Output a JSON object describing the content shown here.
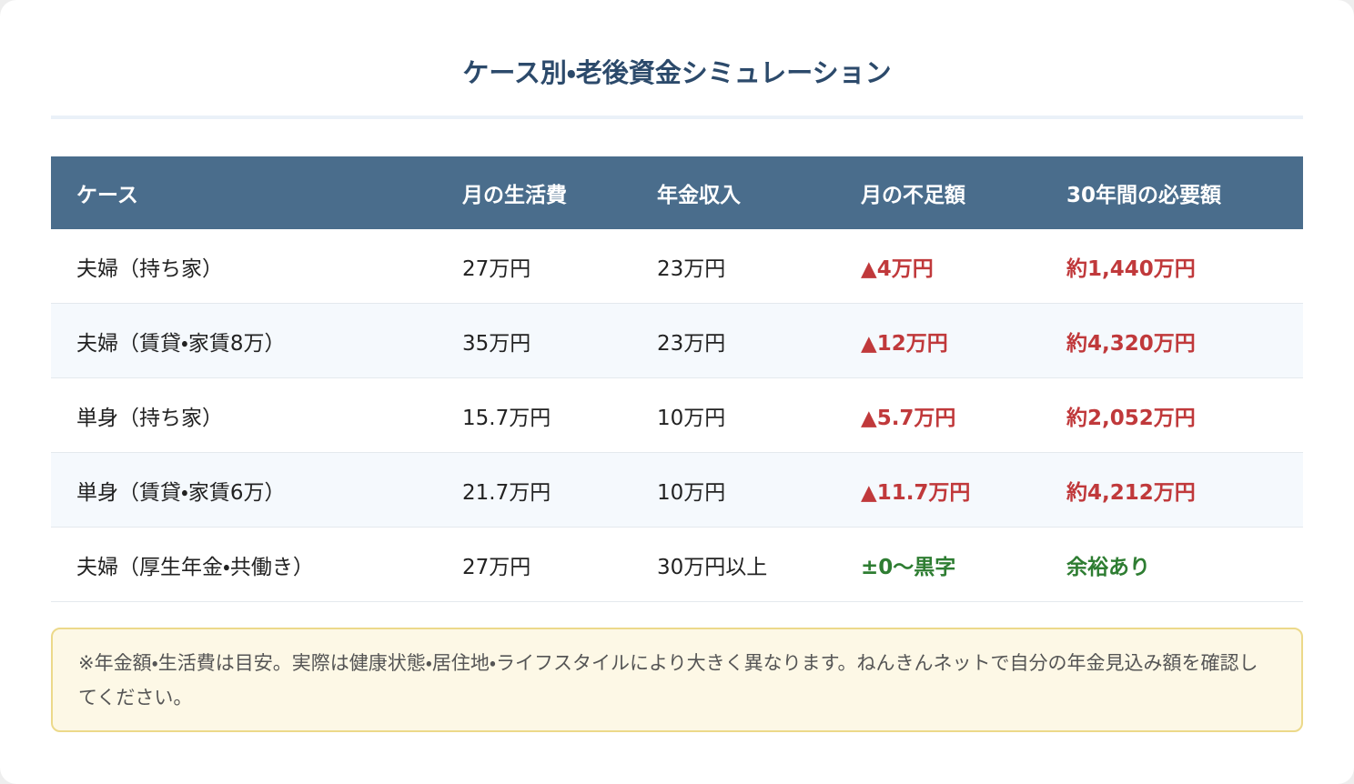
{
  "header": {
    "title": "ケース別・老後資金シミュレーション"
  },
  "table": {
    "columns": [
      "ケース",
      "月の生活費",
      "年金収入",
      "月の不足額",
      "30年間の必要額"
    ],
    "rows": [
      [
        "夫婦（持ち家）",
        "27万円",
        "23万円",
        "▲4万円",
        "約1,440万円"
      ],
      [
        "夫婦（賃貸・家賃8万）",
        "35万円",
        "23万円",
        "▲12万円",
        "約4,320万円"
      ],
      [
        "単身（持ち家）",
        "15.7万円",
        "10万円",
        "▲5.7万円",
        "約2,052万円"
      ],
      [
        "単身（賃貸・家賃6万）",
        "21.7万円",
        "10万円",
        "▲11.7万円",
        "約4,212万円"
      ],
      [
        "夫婦（厚生年金・共働き）",
        "27万円",
        "30万円以上",
        "±0〜黒字",
        "余裕あり"
      ]
    ]
  },
  "note": {
    "text": "※年金額・生活費は目安。実際は健康状態・居住地・ライフスタイルにより大きく異なります。ねんきんネットで自分の年金見込み額を確認してください。"
  }
}
